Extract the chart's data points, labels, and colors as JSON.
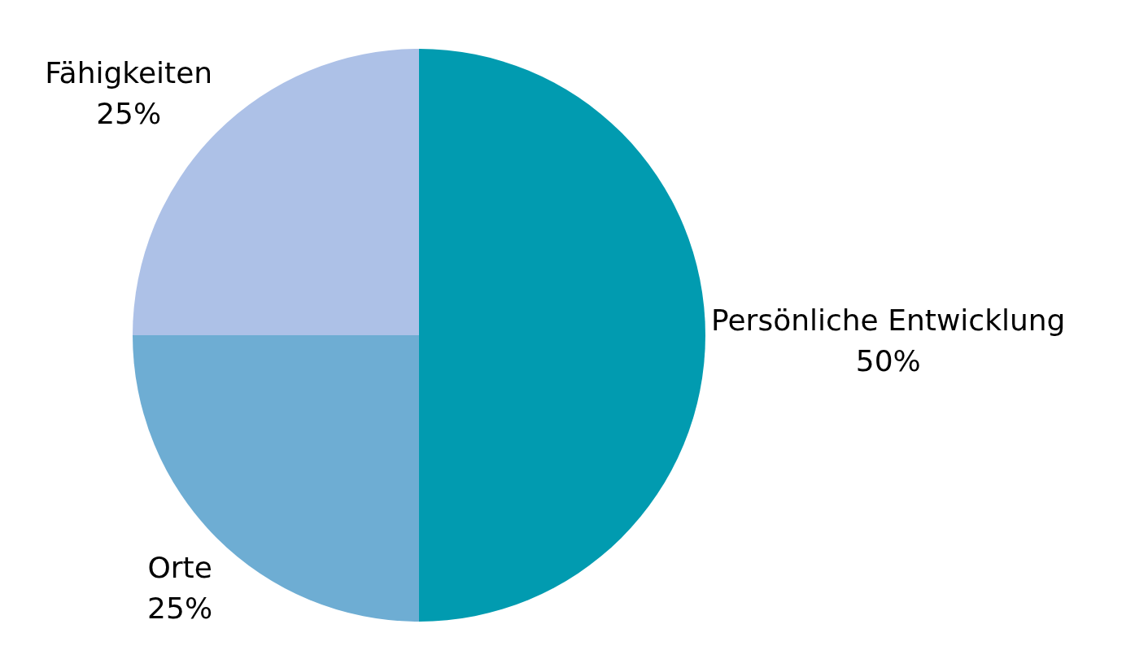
{
  "chart_data": {
    "type": "pie",
    "categories": [
      "Persönliche Entwicklung",
      "Orte",
      "Fähigkeiten"
    ],
    "values": [
      50,
      25,
      25
    ],
    "colors": [
      "#019bb0",
      "#6eadd3",
      "#adc1e7"
    ],
    "value_labels": [
      "50%",
      "25%",
      "25%"
    ]
  }
}
